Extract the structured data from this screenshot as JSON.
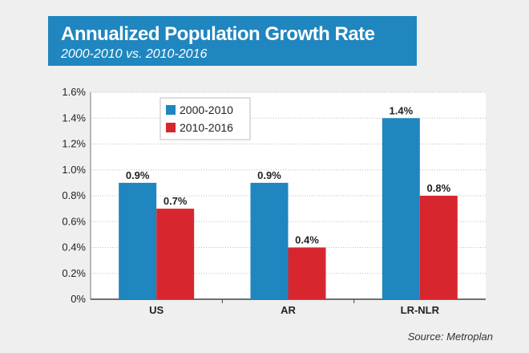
{
  "header": {
    "title": "Annualized Population Growth Rate",
    "subtitle": "2000-2010 vs. 2010-2016"
  },
  "source": "Source: Metroplan",
  "colors": {
    "series_2000_2010": "#1f86bf",
    "series_2010_2016": "#d8262f",
    "header_bg": "#1f86bf"
  },
  "chart_data": {
    "type": "bar",
    "title": "Annualized Population Growth Rate",
    "subtitle": "2000-2010 vs. 2010-2016",
    "categories": [
      "US",
      "AR",
      "LR-NLR"
    ],
    "series": [
      {
        "name": "2000-2010",
        "values": [
          0.9,
          0.9,
          1.4
        ],
        "labels": [
          "0.9%",
          "0.9%",
          "1.4%"
        ]
      },
      {
        "name": "2010-2016",
        "values": [
          0.7,
          0.4,
          0.8
        ],
        "labels": [
          "0.7%",
          "0.4%",
          "0.8%"
        ]
      }
    ],
    "ylim": [
      0,
      1.6
    ],
    "yticks": [
      "0%",
      "0.2%",
      "0.4%",
      "0.6%",
      "0.8%",
      "1.0%",
      "1.2%",
      "1.4%",
      "1.6%"
    ],
    "xlabel": "",
    "ylabel": "",
    "grid": true,
    "legend": "top-left"
  }
}
